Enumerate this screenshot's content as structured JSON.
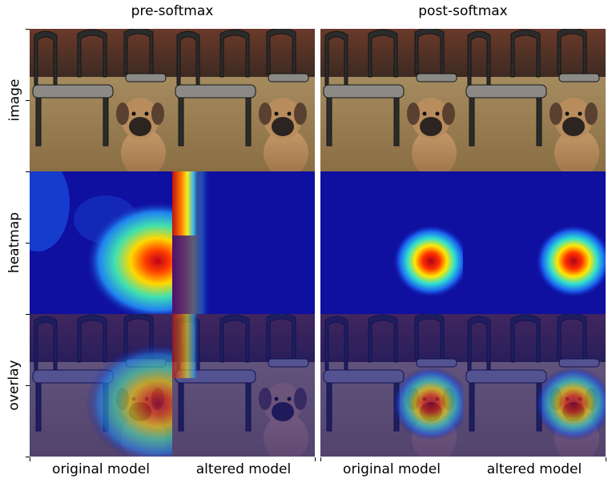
{
  "figure": {
    "group_titles": [
      "pre-softmax",
      "post-softmax"
    ],
    "row_labels": [
      "image",
      "heatmap",
      "overlay"
    ],
    "column_labels": [
      "original model",
      "altered model",
      "original model",
      "altered model"
    ]
  },
  "colors": {
    "heatmap_background": "#0f0fa0",
    "hot": "#c0001a",
    "warm": "#f0e000",
    "mid": "#20c0f0",
    "separator": "#ffffff"
  }
}
